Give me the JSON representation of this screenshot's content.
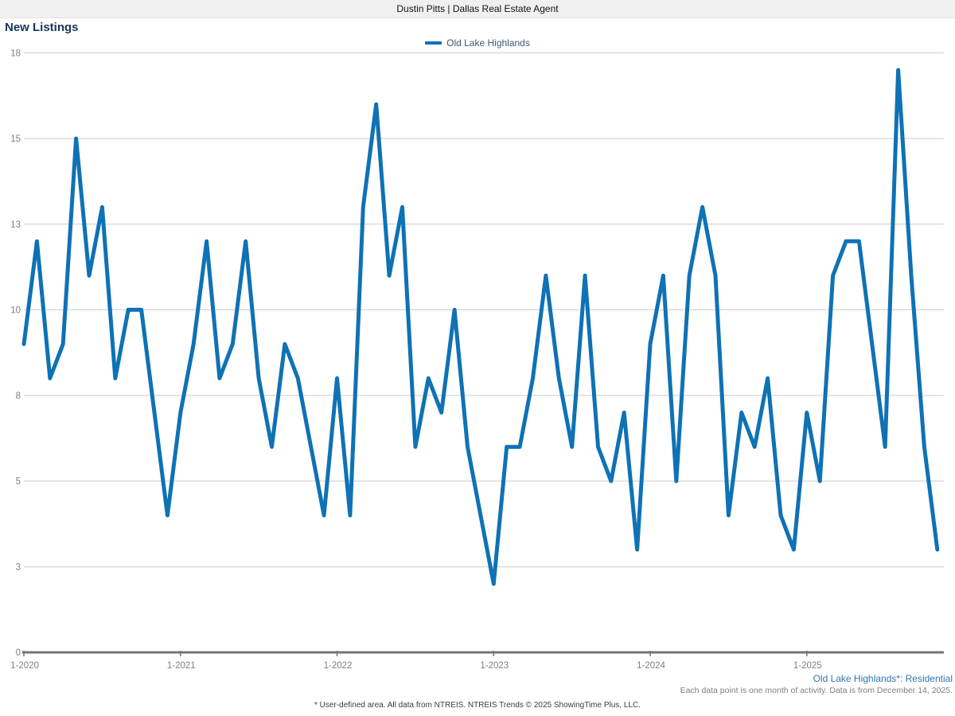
{
  "header": {
    "title": "Dustin Pitts | Dallas Real Estate Agent"
  },
  "chart": {
    "title": "New Listings",
    "legend": {
      "label": "Old Lake Highlands",
      "color": "#0e72b5"
    }
  },
  "chart_data": {
    "type": "line",
    "title": "New Listings",
    "series": [
      {
        "name": "Old Lake Highlands",
        "color": "#0e72b5",
        "start": "1-2020",
        "end": "11-2025",
        "values": [
          9,
          12,
          8,
          9,
          15,
          11,
          13,
          8,
          10,
          10,
          7,
          4,
          7,
          9,
          12,
          8,
          9,
          12,
          8,
          6,
          9,
          8,
          6,
          4,
          8,
          4,
          13,
          16,
          11,
          13,
          6,
          8,
          7,
          10,
          6,
          4,
          2,
          6,
          6,
          8,
          11,
          8,
          6,
          11,
          6,
          5,
          7,
          3,
          9,
          11,
          5,
          11,
          13,
          11,
          4,
          7,
          6,
          8,
          4,
          3,
          7,
          5,
          11,
          12,
          12,
          9,
          6,
          17,
          11,
          6,
          3
        ]
      }
    ],
    "x_ticks": [
      {
        "label": "1-2020",
        "index": 0
      },
      {
        "label": "1-2021",
        "index": 12
      },
      {
        "label": "1-2022",
        "index": 24
      },
      {
        "label": "1-2023",
        "index": 36
      },
      {
        "label": "1-2024",
        "index": 48
      },
      {
        "label": "1-2025",
        "index": 60
      }
    ],
    "y_axis": {
      "min": 0,
      "max": 17.5,
      "gridline_step": 2.5,
      "tick_values": [
        0,
        2.5,
        5,
        7.5,
        10,
        12.5,
        15,
        17.5
      ],
      "tick_labels": [
        "0",
        "3",
        "5",
        "8",
        "10",
        "13",
        "15",
        "18"
      ]
    },
    "grid": "horizontal",
    "legend_position": "top-center",
    "colors": {
      "line": "#0e72b5",
      "gridline": "#cccccc",
      "axis": "#737373",
      "tick_text": "#7f7f7f"
    }
  },
  "footer": {
    "area_label": "Old Lake Highlands*: Residential",
    "note": "Each data point is one month of activity. Data is from December 14, 2025.",
    "disclaimer": "* User-defined area. All data from NTREIS. NTREIS Trends © 2025 ShowingTime Plus, LLC."
  }
}
